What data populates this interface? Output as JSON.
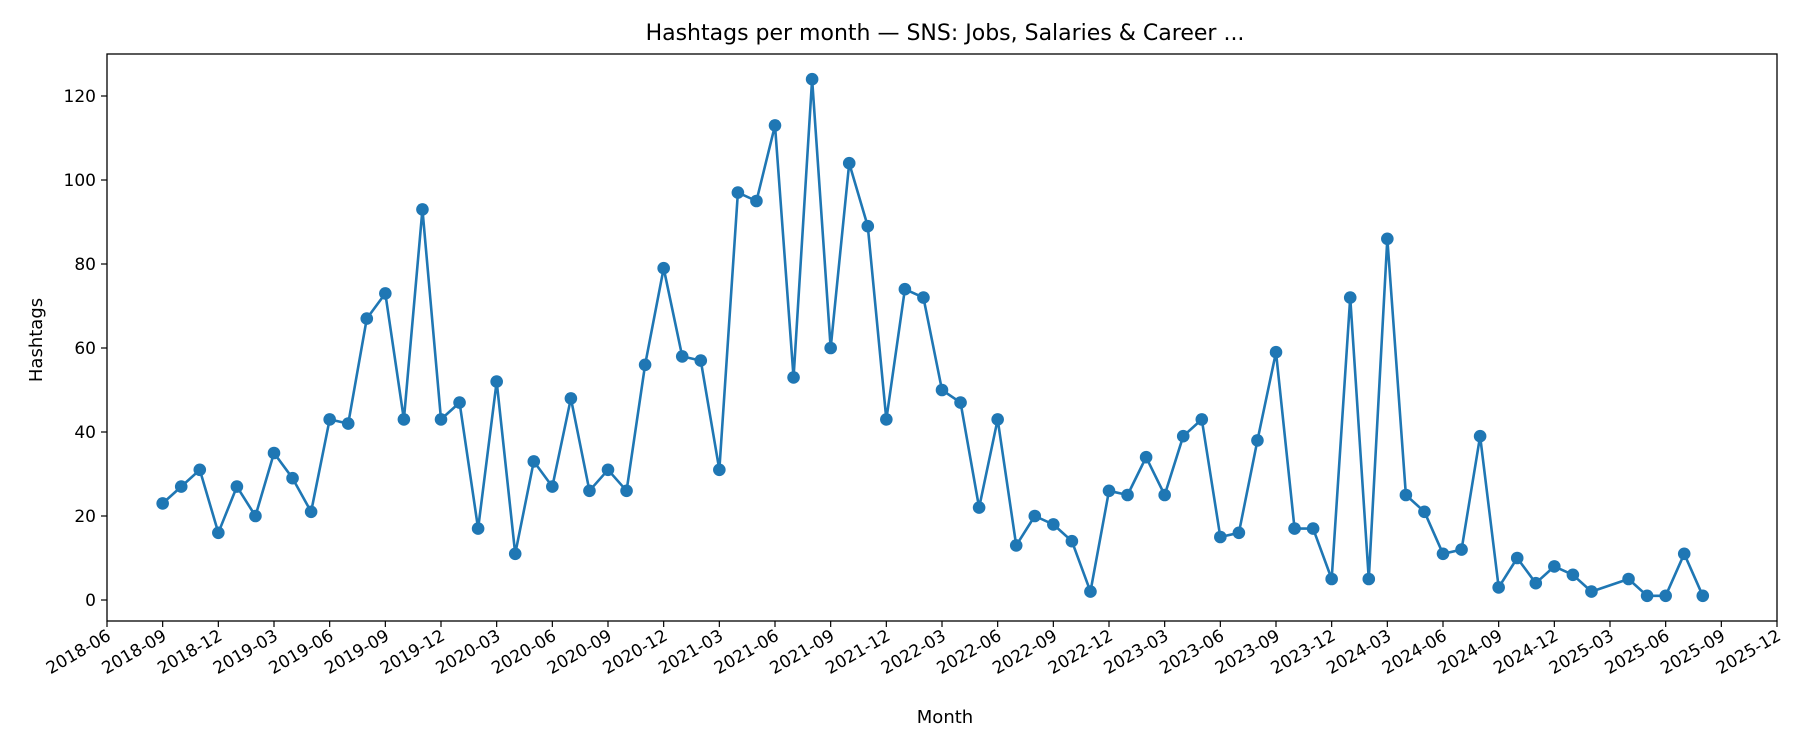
{
  "chart_data": {
    "type": "line",
    "title": "Hashtags per month — SNS: Jobs, Salaries & Career ...",
    "xlabel": "Month",
    "ylabel": "Hashtags",
    "ylim": [
      -5,
      130
    ],
    "yticks": [
      0,
      20,
      40,
      60,
      80,
      100,
      120
    ],
    "xlim": [
      "2018-06",
      "2025-12"
    ],
    "xticks": [
      "2018-06",
      "2018-09",
      "2018-12",
      "2019-03",
      "2019-06",
      "2019-09",
      "2019-12",
      "2020-03",
      "2020-06",
      "2020-09",
      "2020-12",
      "2021-03",
      "2021-06",
      "2021-09",
      "2021-12",
      "2022-03",
      "2022-06",
      "2022-09",
      "2022-12",
      "2023-03",
      "2023-06",
      "2023-09",
      "2023-12",
      "2024-03",
      "2024-06",
      "2024-09",
      "2024-12",
      "2025-03",
      "2025-06",
      "2025-09",
      "2025-12"
    ],
    "grid": false,
    "color": "#1f77b4",
    "marker": "circle",
    "series": [
      {
        "x": [
          "2018-09",
          "2018-10",
          "2018-11",
          "2018-12",
          "2019-01",
          "2019-02",
          "2019-03",
          "2019-04",
          "2019-05",
          "2019-06",
          "2019-07",
          "2019-08",
          "2019-09",
          "2019-10",
          "2019-11",
          "2019-12",
          "2020-01",
          "2020-02",
          "2020-03",
          "2020-04",
          "2020-05",
          "2020-06",
          "2020-07",
          "2020-08",
          "2020-09",
          "2020-10",
          "2020-11",
          "2020-12",
          "2021-01",
          "2021-02",
          "2021-03",
          "2021-04",
          "2021-05",
          "2021-06",
          "2021-07",
          "2021-08",
          "2021-09",
          "2021-10",
          "2021-11",
          "2021-12",
          "2022-01",
          "2022-02",
          "2022-03",
          "2022-04",
          "2022-05",
          "2022-06",
          "2022-07",
          "2022-08",
          "2022-09",
          "2022-10",
          "2022-11",
          "2022-12",
          "2023-01",
          "2023-02",
          "2023-03",
          "2023-04",
          "2023-05",
          "2023-06",
          "2023-07",
          "2023-08",
          "2023-09",
          "2023-10",
          "2023-11",
          "2023-12",
          "2024-01",
          "2024-02",
          "2024-03",
          "2024-04",
          "2024-05",
          "2024-06",
          "2024-07",
          "2024-08",
          "2024-09",
          "2024-10",
          "2024-11",
          "2024-12",
          "2025-01",
          "2025-02",
          "2025-04",
          "2025-05",
          "2025-06",
          "2025-07",
          "2025-08"
        ],
        "y": [
          23,
          27,
          31,
          16,
          27,
          20,
          35,
          29,
          21,
          43,
          42,
          67,
          73,
          43,
          93,
          43,
          47,
          17,
          52,
          11,
          33,
          27,
          48,
          26,
          31,
          26,
          56,
          79,
          58,
          57,
          31,
          97,
          95,
          113,
          53,
          124,
          60,
          104,
          89,
          43,
          74,
          72,
          50,
          47,
          22,
          43,
          13,
          20,
          18,
          14,
          2,
          26,
          25,
          34,
          25,
          39,
          43,
          15,
          16,
          38,
          59,
          17,
          17,
          5,
          72,
          5,
          86,
          25,
          21,
          11,
          12,
          39,
          3,
          10,
          4,
          8,
          6,
          2,
          5,
          1,
          1,
          11,
          1
        ]
      }
    ]
  }
}
